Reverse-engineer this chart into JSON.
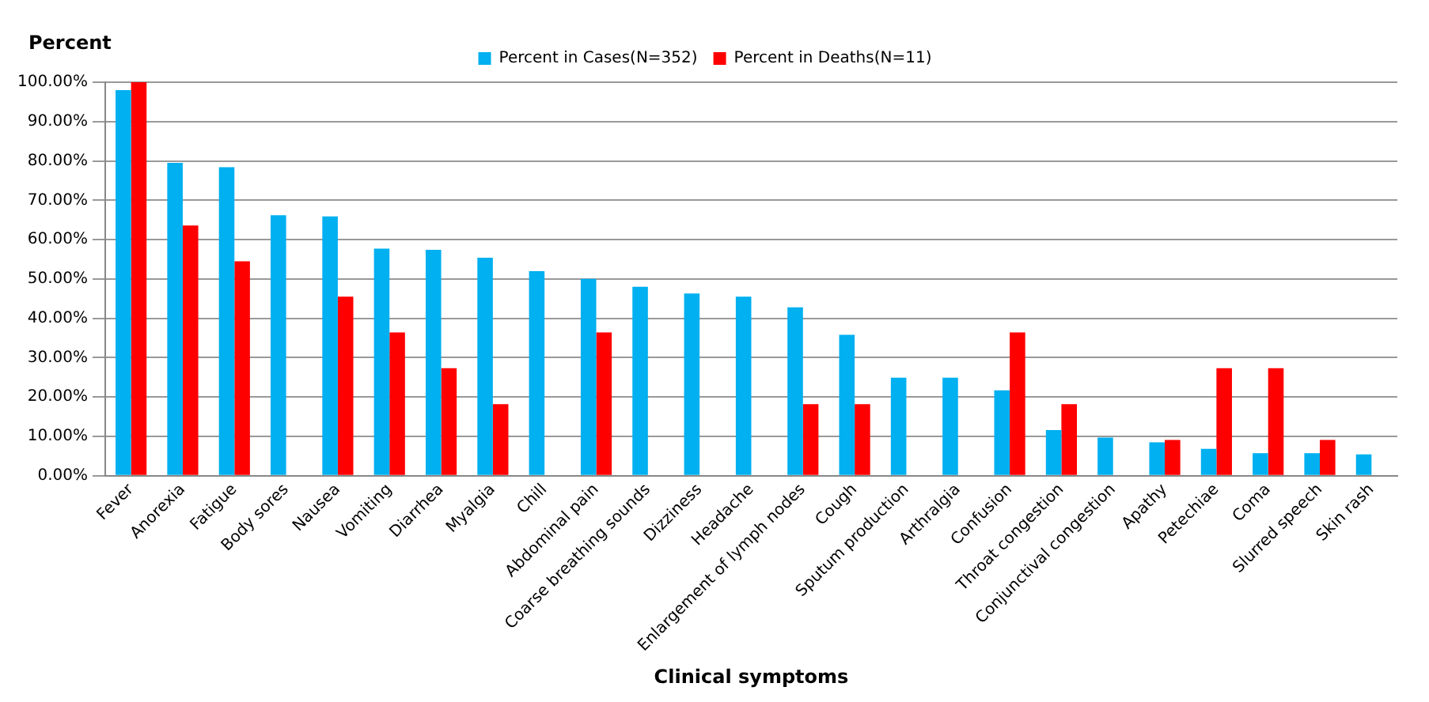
{
  "chart_data": {
    "type": "bar",
    "ylabel": "Percent",
    "xlabel": "Clinical symptoms",
    "categories": [
      "Fever",
      "Anorexia",
      "Fatigue",
      "Body sores",
      "Nausea",
      "Vomiting",
      "Diarrhea",
      "Myalgia",
      "Chill",
      "Abdominal pain",
      "Coarse breathing sounds",
      "Dizziness",
      "Headache",
      "Enlargement of lymph nodes",
      "Cough",
      "Sputum production",
      "Arthralgia",
      "Confusion",
      "Throat congestion",
      "Conjunctival congestion",
      "Apathy",
      "Petechiae",
      "Coma",
      "Slurred speech",
      "Skin rash"
    ],
    "series": [
      {
        "name": "Percent in Cases(N=352)",
        "color": "#00b0f0",
        "values": [
          98.0,
          79.5,
          78.4,
          66.2,
          65.9,
          57.7,
          57.4,
          55.4,
          52.0,
          50.0,
          48.0,
          46.3,
          45.5,
          42.8,
          35.8,
          24.9,
          24.9,
          21.7,
          11.6,
          9.7,
          8.5,
          6.8,
          5.7,
          5.7,
          5.4
        ]
      },
      {
        "name": "Percent in Deaths(N=11)",
        "color": "#ff0000",
        "values": [
          100,
          63.6,
          54.5,
          0,
          45.5,
          36.4,
          27.3,
          18.2,
          0,
          36.4,
          0,
          0,
          0,
          18.2,
          18.2,
          0,
          0,
          36.4,
          18.2,
          0,
          9.1,
          27.3,
          27.3,
          9.1,
          0
        ]
      }
    ],
    "ylim": [
      0,
      100
    ],
    "yticks": [
      {
        "value": 0,
        "label": "0.00%"
      },
      {
        "value": 10,
        "label": "10.00%"
      },
      {
        "value": 20,
        "label": "20.00%"
      },
      {
        "value": 30,
        "label": "30.00%"
      },
      {
        "value": 40,
        "label": "40.00%"
      },
      {
        "value": 50,
        "label": "50.00%"
      },
      {
        "value": 60,
        "label": "60.00%"
      },
      {
        "value": 70,
        "label": "70.00%"
      },
      {
        "value": 80,
        "label": "80.00%"
      },
      {
        "value": 90,
        "label": "90.00%"
      },
      {
        "value": 100,
        "label": "100.00%"
      }
    ],
    "grid": "y",
    "legend": "top"
  }
}
